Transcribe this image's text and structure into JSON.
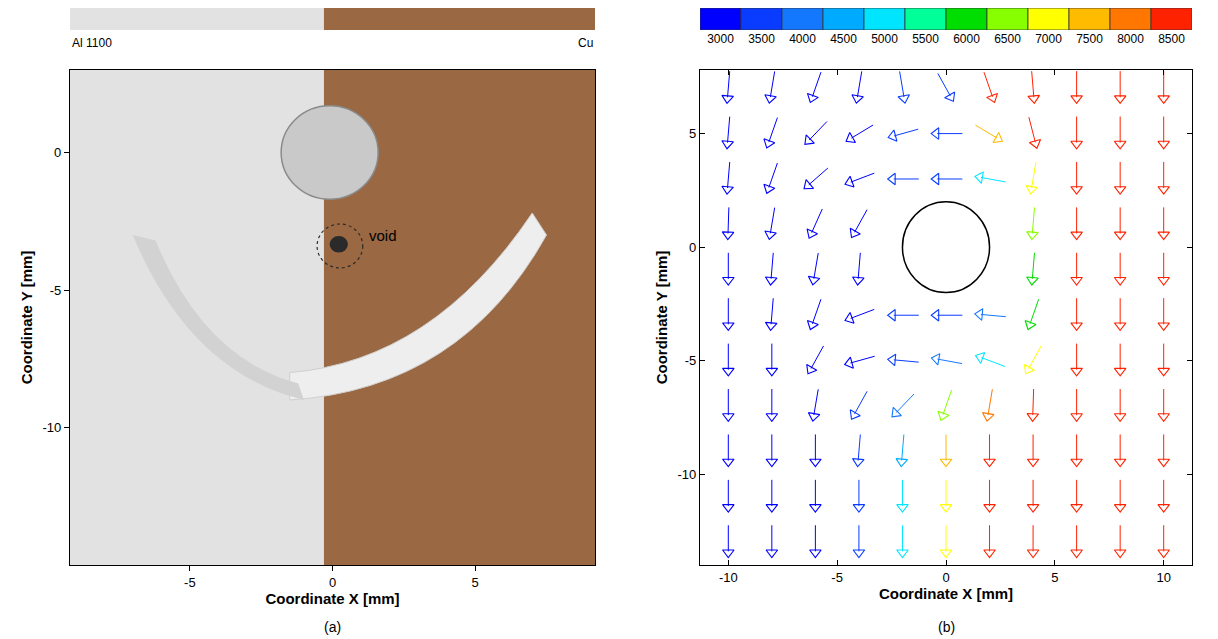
{
  "chart_data": [
    {
      "type": "image",
      "label": "(a)",
      "x_label": "Coordinate X [mm]",
      "y_label": "Coordinate Y [mm]",
      "xlim": [
        -9.2,
        9.2
      ],
      "ylim": [
        -15,
        3
      ],
      "xticks": [
        -5,
        0,
        5
      ],
      "yticks": [
        -10,
        -5,
        0
      ],
      "materials": [
        {
          "name": "Al 1100",
          "color": "#e2e2e2"
        },
        {
          "name": "Cu",
          "color": "#9a6842"
        }
      ],
      "boundary_x": -0.3,
      "circles": [
        {
          "x": -0.1,
          "y": 0.0,
          "radius": 1.7,
          "line_style": "solid",
          "color": "#c9c9c9"
        },
        {
          "x": 0.26,
          "y": -3.4,
          "radius": 0.8,
          "line_style": "dashed",
          "color": "#2a2a2a"
        }
      ],
      "annotations": [
        {
          "text": "void",
          "x": 1.2,
          "y": -3.0
        }
      ]
    },
    {
      "type": "vector",
      "label": "(b)",
      "x_label": "Coordinate X [mm]",
      "y_label": "Coordinate Y [mm]",
      "xlim": [
        -11.3,
        11.3
      ],
      "ylim": [
        -14,
        7.8
      ],
      "xticks": [
        -10,
        -5,
        0,
        5,
        10
      ],
      "yticks": [
        -10,
        -5,
        0,
        5
      ],
      "circle": {
        "x": 0,
        "y": 0,
        "radius": 2
      },
      "colorbar": {
        "range": [
          2750,
          8750
        ],
        "ticks": [
          3000,
          3500,
          4000,
          4500,
          5000,
          5500,
          6000,
          6500,
          7000,
          7500,
          8000,
          8500
        ],
        "colors": [
          "#0000ff",
          "#0a3cff",
          "#1478ff",
          "#00aaff",
          "#00e5ff",
          "#00ff99",
          "#00dd00",
          "#88ff00",
          "#ffff00",
          "#ffbb00",
          "#ff7700",
          "#ff2200"
        ]
      },
      "field": [
        {
          "y": 7,
          "x": [
            -10,
            -8,
            -6,
            -4,
            -2,
            0,
            2,
            4,
            6,
            8,
            10
          ],
          "direction": [
            -95,
            -100,
            -110,
            -100,
            -80,
            -60,
            -70,
            -85,
            -90,
            -90,
            -90
          ],
          "values": [
            3000,
            3000,
            3100,
            3200,
            3300,
            3400,
            8600,
            8700,
            8800,
            8800,
            8800
          ]
        },
        {
          "y": 5,
          "x": [
            -10,
            -8,
            -6,
            -4,
            -2,
            0,
            2,
            4,
            6,
            8,
            10
          ],
          "direction": [
            -95,
            -110,
            -135,
            -150,
            -165,
            180,
            -30,
            -75,
            -90,
            -90,
            -90
          ],
          "values": [
            3000,
            3000,
            3100,
            3200,
            3300,
            3400,
            7500,
            8500,
            8800,
            8800,
            8800
          ]
        },
        {
          "y": 3,
          "x": [
            -10,
            -8,
            -6,
            -4,
            -2,
            0,
            2,
            4,
            6,
            8,
            10
          ],
          "direction": [
            -95,
            -110,
            -140,
            -160,
            180,
            180,
            170,
            -100,
            -90,
            -90,
            -90
          ],
          "values": [
            3000,
            3000,
            3100,
            3200,
            3300,
            3400,
            5000,
            7000,
            8700,
            8800,
            8800
          ]
        },
        {
          "y": 1,
          "x": [
            -10,
            -8,
            -6,
            -4,
            4,
            6,
            8,
            10
          ],
          "direction": [
            -92,
            -100,
            -115,
            -120,
            -95,
            -90,
            -90,
            -90
          ],
          "values": [
            3000,
            3000,
            3100,
            3200,
            6500,
            8600,
            8800,
            8800
          ]
        },
        {
          "y": -1,
          "x": [
            -10,
            -8,
            -6,
            -4,
            4,
            6,
            8,
            10
          ],
          "direction": [
            -90,
            -95,
            -100,
            -95,
            -95,
            -90,
            -90,
            -90
          ],
          "values": [
            3000,
            3000,
            3100,
            3200,
            6000,
            8500,
            8800,
            8800
          ]
        },
        {
          "y": -3,
          "x": [
            -10,
            -8,
            -6,
            -4,
            -2,
            0,
            2,
            4,
            6,
            8,
            10
          ],
          "direction": [
            -90,
            -95,
            -110,
            -160,
            180,
            180,
            175,
            -110,
            -90,
            -90,
            -90
          ],
          "values": [
            3000,
            3000,
            3100,
            3200,
            3300,
            3400,
            4000,
            6000,
            8500,
            8800,
            8800
          ]
        },
        {
          "y": -5,
          "x": [
            -10,
            -8,
            -6,
            -4,
            -2,
            0,
            2,
            4,
            6,
            8,
            10
          ],
          "direction": [
            -90,
            -90,
            -120,
            -165,
            175,
            170,
            160,
            -120,
            -90,
            -90,
            -90
          ],
          "values": [
            3000,
            3000,
            3100,
            3200,
            3300,
            3800,
            5000,
            7000,
            8600,
            8800,
            8800
          ]
        },
        {
          "y": -7,
          "x": [
            -10,
            -8,
            -6,
            -4,
            -2,
            0,
            2,
            4,
            6,
            8,
            10
          ],
          "direction": [
            -90,
            -90,
            -100,
            -120,
            -135,
            -110,
            -100,
            -92,
            -90,
            -90,
            -90
          ],
          "values": [
            3000,
            3000,
            3100,
            3300,
            4000,
            6500,
            8000,
            8600,
            8800,
            8800,
            8800
          ]
        },
        {
          "y": -9,
          "x": [
            -10,
            -8,
            -6,
            -4,
            -2,
            0,
            2,
            4,
            6,
            8,
            10
          ],
          "direction": [
            -90,
            -90,
            -90,
            -95,
            -95,
            -90,
            -90,
            -90,
            -90,
            -90,
            -90
          ],
          "values": [
            3000,
            3000,
            3100,
            3300,
            4500,
            7500,
            8500,
            8800,
            8800,
            8800,
            8800
          ]
        },
        {
          "y": -11,
          "x": [
            -10,
            -8,
            -6,
            -4,
            -2,
            0,
            2,
            4,
            6,
            8,
            10
          ],
          "direction": [
            -90,
            -90,
            -90,
            -90,
            -90,
            -90,
            -90,
            -90,
            -90,
            -90,
            -90
          ],
          "values": [
            3000,
            3000,
            3100,
            3300,
            4800,
            7000,
            8500,
            8800,
            8800,
            8800,
            8800
          ]
        },
        {
          "y": -13,
          "x": [
            -10,
            -8,
            -6,
            -4,
            -2,
            0,
            2,
            4,
            6,
            8,
            10
          ],
          "direction": [
            -90,
            -90,
            -90,
            -90,
            -90,
            -90,
            -90,
            -90,
            -90,
            -90,
            -90
          ],
          "values": [
            3000,
            3000,
            3100,
            3300,
            5000,
            7200,
            8500,
            8800,
            8800,
            8800,
            8800
          ]
        }
      ]
    }
  ]
}
